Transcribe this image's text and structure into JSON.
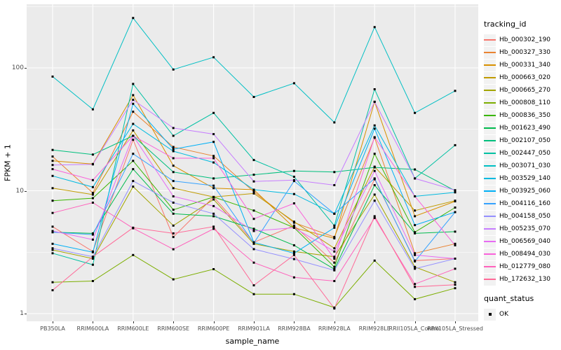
{
  "figure": {
    "panel_bg": "#EBEBEB",
    "grid_color": "#FFFFFF",
    "tick_color": "#333333",
    "tick_label_color": "#4D4D4D",
    "point_color": "#000000"
  },
  "axes": {
    "x_title": "sample_name",
    "y_title": "FPKM + 1",
    "y_tick_labels": [
      "1",
      "10",
      "100"
    ]
  },
  "legend": {
    "tracking_title": "tracking_id",
    "quant_title": "quant_status",
    "quant_items": [
      {
        "label": "OK",
        "marker": "black-square"
      }
    ]
  },
  "chart_data": {
    "type": "line",
    "title": "",
    "xlabel": "sample_name",
    "ylabel": "FPKM + 1",
    "y_scale": "log10",
    "y_ticks": [
      1,
      10,
      100
    ],
    "ylim": [
      0.9,
      330
    ],
    "grid": "major-and-minor-log",
    "legend_position": "right",
    "point_marker": "small-black-square",
    "categories": [
      "PB350LA",
      "RRIM600LA",
      "RRIM600LE",
      "RRIM600SE",
      "RRIM600PE",
      "RRIM901LA",
      "RRIM928BA",
      "RRIM928LA",
      "RRIM928LE",
      "RRII105LA_Control",
      "RRII105LA_Stressed"
    ],
    "series": [
      {
        "name": "Hb_000302_190",
        "color": "#F8766D",
        "values": [
          5.1,
          3.2,
          26,
          4.2,
          8.9,
          3.8,
          5.2,
          2.6,
          12.4,
          2.7,
          2.8
        ]
      },
      {
        "name": "Hb_000327_330",
        "color": "#EA8331",
        "values": [
          19,
          9.6,
          44,
          22.7,
          19.2,
          9.8,
          5.5,
          4.2,
          27,
          3.1,
          3.7
        ]
      },
      {
        "name": "Hb_000331_340",
        "color": "#D89000",
        "values": [
          17.5,
          16.5,
          60,
          16,
          10.5,
          10.2,
          5.0,
          4.1,
          53,
          6.2,
          8.2
        ]
      },
      {
        "name": "Hb_000663_020",
        "color": "#C09B00",
        "values": [
          10.5,
          9.3,
          31,
          10.5,
          8.9,
          9.5,
          5.6,
          3.4,
          15.7,
          6.9,
          8.3
        ]
      },
      {
        "name": "Hb_000665_270",
        "color": "#A3A500",
        "values": [
          3.3,
          2.8,
          10.8,
          5.2,
          8.5,
          3.7,
          3.2,
          2.9,
          9.3,
          2.4,
          1.8
        ]
      },
      {
        "name": "Hb_000808_110",
        "color": "#7CAE00",
        "values": [
          1.8,
          1.84,
          3.0,
          1.9,
          2.3,
          1.44,
          1.44,
          1.12,
          2.7,
          1.31,
          1.61
        ]
      },
      {
        "name": "Hb_000836_350",
        "color": "#39B600",
        "values": [
          8.3,
          8.7,
          17.5,
          7.0,
          8.9,
          6.9,
          5.0,
          2.4,
          20,
          4.6,
          7.3
        ]
      },
      {
        "name": "Hb_001623_490",
        "color": "#00BB4E",
        "values": [
          4.6,
          4.5,
          15,
          6.5,
          6.2,
          4.9,
          3.6,
          2.3,
          11.1,
          4.5,
          4.65
        ]
      },
      {
        "name": "Hb_002107_050",
        "color": "#00BF7D",
        "values": [
          21.5,
          19.7,
          28,
          14.2,
          12.6,
          13.5,
          14.5,
          14.2,
          15.5,
          14.9,
          10.0
        ]
      },
      {
        "name": "Hb_002447_050",
        "color": "#00C1A3",
        "values": [
          3.1,
          2.5,
          74,
          28,
          43,
          17.8,
          13,
          5.2,
          67,
          12.6,
          23.5
        ]
      },
      {
        "name": "Hb_003071_030",
        "color": "#00BFC4",
        "values": [
          85,
          46,
          255,
          97,
          122,
          58,
          75,
          36,
          215,
          43,
          65
        ]
      },
      {
        "name": "Hb_003529_140",
        "color": "#00BAE0",
        "values": [
          13.2,
          10.7,
          35,
          21,
          17,
          10.2,
          9.4,
          6.5,
          34,
          9.0,
          9.7
        ]
      },
      {
        "name": "Hb_003925_060",
        "color": "#00B0F6",
        "values": [
          3.7,
          3.16,
          51,
          21.8,
          25,
          3.8,
          3.1,
          5.0,
          32,
          5.25,
          6.7
        ]
      },
      {
        "name": "Hb_004116_160",
        "color": "#35A2FF",
        "values": [
          4.6,
          4.4,
          20,
          12,
          11,
          3.75,
          12,
          6.5,
          12.6,
          2.66,
          6.7
        ]
      },
      {
        "name": "Hb_004158_050",
        "color": "#9590FF",
        "values": [
          3.4,
          2.9,
          12,
          8.0,
          6.5,
          3.35,
          2.78,
          2.25,
          8.3,
          2.32,
          2.8
        ]
      },
      {
        "name": "Hb_005235_070",
        "color": "#C77CFF",
        "values": [
          16.2,
          16.4,
          55,
          32.4,
          28.9,
          11.9,
          12.2,
          11.1,
          53,
          12.6,
          10.1
        ]
      },
      {
        "name": "Hb_006569_040",
        "color": "#E76BF3",
        "values": [
          4.7,
          4.0,
          28,
          9.0,
          7.5,
          4.7,
          5.0,
          3.2,
          14.5,
          3.0,
          2.8
        ]
      },
      {
        "name": "Hb_008494_030",
        "color": "#FA62DB",
        "values": [
          15,
          12.2,
          28,
          18.4,
          18.4,
          5.9,
          7.9,
          2.8,
          27.3,
          9.0,
          3.6
        ]
      },
      {
        "name": "Hb_012779_080",
        "color": "#FF62BC",
        "values": [
          6.6,
          8.0,
          4.95,
          3.34,
          4.9,
          2.6,
          1.97,
          1.84,
          6.0,
          1.74,
          2.32
        ]
      },
      {
        "name": "Hb_172632_130",
        "color": "#FF6A98",
        "values": [
          1.55,
          2.9,
          5.0,
          4.5,
          5.1,
          1.7,
          3.0,
          1.1,
          6.2,
          1.65,
          1.72
        ]
      }
    ],
    "quant_status": "OK"
  }
}
